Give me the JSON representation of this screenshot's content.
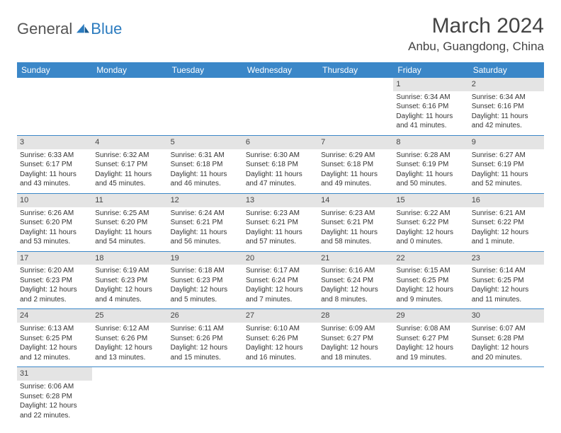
{
  "logo": {
    "text1": "General",
    "text2": "Blue"
  },
  "title": "March 2024",
  "location": "Anbu, Guangdong, China",
  "headers": [
    "Sunday",
    "Monday",
    "Tuesday",
    "Wednesday",
    "Thursday",
    "Friday",
    "Saturday"
  ],
  "colors": {
    "header_bg": "#3b87c8",
    "header_fg": "#ffffff",
    "daynum_bg": "#e4e4e4",
    "border": "#3b87c8",
    "logo_blue": "#2b7bbf",
    "logo_gray": "#555555"
  },
  "weeks": [
    [
      null,
      null,
      null,
      null,
      null,
      {
        "n": "1",
        "sr": "Sunrise: 6:34 AM",
        "ss": "Sunset: 6:16 PM",
        "d1": "Daylight: 11 hours",
        "d2": "and 41 minutes."
      },
      {
        "n": "2",
        "sr": "Sunrise: 6:34 AM",
        "ss": "Sunset: 6:16 PM",
        "d1": "Daylight: 11 hours",
        "d2": "and 42 minutes."
      }
    ],
    [
      {
        "n": "3",
        "sr": "Sunrise: 6:33 AM",
        "ss": "Sunset: 6:17 PM",
        "d1": "Daylight: 11 hours",
        "d2": "and 43 minutes."
      },
      {
        "n": "4",
        "sr": "Sunrise: 6:32 AM",
        "ss": "Sunset: 6:17 PM",
        "d1": "Daylight: 11 hours",
        "d2": "and 45 minutes."
      },
      {
        "n": "5",
        "sr": "Sunrise: 6:31 AM",
        "ss": "Sunset: 6:18 PM",
        "d1": "Daylight: 11 hours",
        "d2": "and 46 minutes."
      },
      {
        "n": "6",
        "sr": "Sunrise: 6:30 AM",
        "ss": "Sunset: 6:18 PM",
        "d1": "Daylight: 11 hours",
        "d2": "and 47 minutes."
      },
      {
        "n": "7",
        "sr": "Sunrise: 6:29 AM",
        "ss": "Sunset: 6:18 PM",
        "d1": "Daylight: 11 hours",
        "d2": "and 49 minutes."
      },
      {
        "n": "8",
        "sr": "Sunrise: 6:28 AM",
        "ss": "Sunset: 6:19 PM",
        "d1": "Daylight: 11 hours",
        "d2": "and 50 minutes."
      },
      {
        "n": "9",
        "sr": "Sunrise: 6:27 AM",
        "ss": "Sunset: 6:19 PM",
        "d1": "Daylight: 11 hours",
        "d2": "and 52 minutes."
      }
    ],
    [
      {
        "n": "10",
        "sr": "Sunrise: 6:26 AM",
        "ss": "Sunset: 6:20 PM",
        "d1": "Daylight: 11 hours",
        "d2": "and 53 minutes."
      },
      {
        "n": "11",
        "sr": "Sunrise: 6:25 AM",
        "ss": "Sunset: 6:20 PM",
        "d1": "Daylight: 11 hours",
        "d2": "and 54 minutes."
      },
      {
        "n": "12",
        "sr": "Sunrise: 6:24 AM",
        "ss": "Sunset: 6:21 PM",
        "d1": "Daylight: 11 hours",
        "d2": "and 56 minutes."
      },
      {
        "n": "13",
        "sr": "Sunrise: 6:23 AM",
        "ss": "Sunset: 6:21 PM",
        "d1": "Daylight: 11 hours",
        "d2": "and 57 minutes."
      },
      {
        "n": "14",
        "sr": "Sunrise: 6:23 AM",
        "ss": "Sunset: 6:21 PM",
        "d1": "Daylight: 11 hours",
        "d2": "and 58 minutes."
      },
      {
        "n": "15",
        "sr": "Sunrise: 6:22 AM",
        "ss": "Sunset: 6:22 PM",
        "d1": "Daylight: 12 hours",
        "d2": "and 0 minutes."
      },
      {
        "n": "16",
        "sr": "Sunrise: 6:21 AM",
        "ss": "Sunset: 6:22 PM",
        "d1": "Daylight: 12 hours",
        "d2": "and 1 minute."
      }
    ],
    [
      {
        "n": "17",
        "sr": "Sunrise: 6:20 AM",
        "ss": "Sunset: 6:23 PM",
        "d1": "Daylight: 12 hours",
        "d2": "and 2 minutes."
      },
      {
        "n": "18",
        "sr": "Sunrise: 6:19 AM",
        "ss": "Sunset: 6:23 PM",
        "d1": "Daylight: 12 hours",
        "d2": "and 4 minutes."
      },
      {
        "n": "19",
        "sr": "Sunrise: 6:18 AM",
        "ss": "Sunset: 6:23 PM",
        "d1": "Daylight: 12 hours",
        "d2": "and 5 minutes."
      },
      {
        "n": "20",
        "sr": "Sunrise: 6:17 AM",
        "ss": "Sunset: 6:24 PM",
        "d1": "Daylight: 12 hours",
        "d2": "and 7 minutes."
      },
      {
        "n": "21",
        "sr": "Sunrise: 6:16 AM",
        "ss": "Sunset: 6:24 PM",
        "d1": "Daylight: 12 hours",
        "d2": "and 8 minutes."
      },
      {
        "n": "22",
        "sr": "Sunrise: 6:15 AM",
        "ss": "Sunset: 6:25 PM",
        "d1": "Daylight: 12 hours",
        "d2": "and 9 minutes."
      },
      {
        "n": "23",
        "sr": "Sunrise: 6:14 AM",
        "ss": "Sunset: 6:25 PM",
        "d1": "Daylight: 12 hours",
        "d2": "and 11 minutes."
      }
    ],
    [
      {
        "n": "24",
        "sr": "Sunrise: 6:13 AM",
        "ss": "Sunset: 6:25 PM",
        "d1": "Daylight: 12 hours",
        "d2": "and 12 minutes."
      },
      {
        "n": "25",
        "sr": "Sunrise: 6:12 AM",
        "ss": "Sunset: 6:26 PM",
        "d1": "Daylight: 12 hours",
        "d2": "and 13 minutes."
      },
      {
        "n": "26",
        "sr": "Sunrise: 6:11 AM",
        "ss": "Sunset: 6:26 PM",
        "d1": "Daylight: 12 hours",
        "d2": "and 15 minutes."
      },
      {
        "n": "27",
        "sr": "Sunrise: 6:10 AM",
        "ss": "Sunset: 6:26 PM",
        "d1": "Daylight: 12 hours",
        "d2": "and 16 minutes."
      },
      {
        "n": "28",
        "sr": "Sunrise: 6:09 AM",
        "ss": "Sunset: 6:27 PM",
        "d1": "Daylight: 12 hours",
        "d2": "and 18 minutes."
      },
      {
        "n": "29",
        "sr": "Sunrise: 6:08 AM",
        "ss": "Sunset: 6:27 PM",
        "d1": "Daylight: 12 hours",
        "d2": "and 19 minutes."
      },
      {
        "n": "30",
        "sr": "Sunrise: 6:07 AM",
        "ss": "Sunset: 6:28 PM",
        "d1": "Daylight: 12 hours",
        "d2": "and 20 minutes."
      }
    ],
    [
      {
        "n": "31",
        "sr": "Sunrise: 6:06 AM",
        "ss": "Sunset: 6:28 PM",
        "d1": "Daylight: 12 hours",
        "d2": "and 22 minutes."
      },
      null,
      null,
      null,
      null,
      null,
      null
    ]
  ]
}
